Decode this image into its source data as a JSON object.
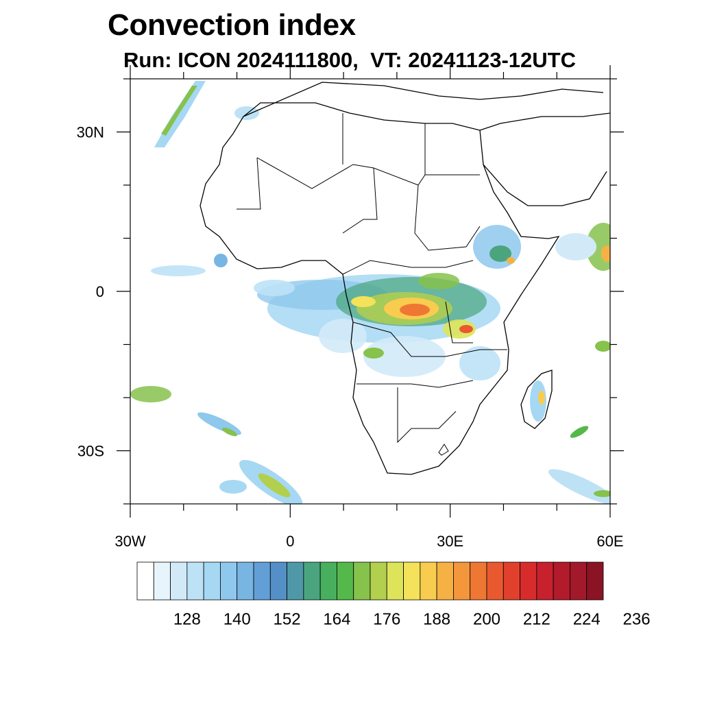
{
  "title": "Convection index",
  "subtitle": "Run: ICON 2024111800,  VT: 20241123-12UTC",
  "map": {
    "projection": "cylindrical equidistant",
    "lon_range": [
      -30,
      60
    ],
    "lat_range": [
      -40,
      40
    ],
    "x_ticks": [
      {
        "lon": -30,
        "label": "30W"
      },
      {
        "lon": 0,
        "label": "0"
      },
      {
        "lon": 30,
        "label": "30E"
      },
      {
        "lon": 60,
        "label": "60E"
      }
    ],
    "y_ticks": [
      {
        "lat": 30,
        "label": "30N"
      },
      {
        "lat": 0,
        "label": "0"
      },
      {
        "lat": -30,
        "label": "30S"
      }
    ]
  },
  "colorbar": {
    "colors": [
      "#ffffff",
      "#e8f4fb",
      "#d2eaf8",
      "#bde2f6",
      "#a6d8f3",
      "#8fc8ed",
      "#78b5e3",
      "#629fd6",
      "#5490c7",
      "#4f98a8",
      "#4aa57e",
      "#47af5e",
      "#55b84a",
      "#86c24c",
      "#b2cf4e",
      "#dde45a",
      "#f3e25a",
      "#f8cc4f",
      "#f6b145",
      "#f4963b",
      "#ef7734",
      "#e9592f",
      "#e1402c",
      "#d82b2c",
      "#c6212d",
      "#b21b2b",
      "#a1192a",
      "#8a1424"
    ],
    "labels": [
      "128",
      "140",
      "152",
      "164",
      "176",
      "188",
      "200",
      "212",
      "224",
      "236"
    ]
  }
}
